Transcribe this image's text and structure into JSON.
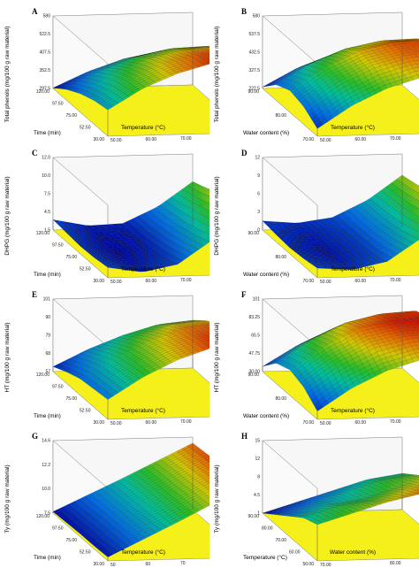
{
  "figure": {
    "background": "#ffffff"
  },
  "chart_data": [
    {
      "panel": "A",
      "type": "surface",
      "xlabel": "Time (min)",
      "ylabel": "Temperature (°C)",
      "zlabel": "Total phenols (mg/100 g raw material)",
      "x_ticks": [
        "120.00",
        "97.50",
        "75.00",
        "52.50",
        "30.00"
      ],
      "y_ticks": [
        "50.00",
        "60.00",
        "70.00",
        "80.00",
        "90.00"
      ],
      "z_ticks": [
        "297.5",
        "352.5",
        "407.5",
        "522.5",
        "580"
      ],
      "zlim": [
        297.5,
        580
      ],
      "grid_x": [
        30,
        52.5,
        75,
        97.5,
        120
      ],
      "grid_y": [
        50,
        60,
        70,
        80,
        90
      ],
      "z": [
        [
          300,
          360,
          405,
          430,
          435
        ],
        [
          340,
          410,
          460,
          490,
          495
        ],
        [
          370,
          445,
          500,
          530,
          540
        ],
        [
          390,
          470,
          525,
          560,
          570
        ],
        [
          400,
          480,
          535,
          572,
          580
        ]
      ]
    },
    {
      "panel": "B",
      "type": "surface",
      "xlabel": "Water content (%)",
      "ylabel": "Temperature (°C)",
      "zlabel": "Total phenols (mg/100 g raw material)",
      "x_ticks": [
        "90.00",
        "80.00",
        "70.00"
      ],
      "y_ticks": [
        "50.00",
        "60.00",
        "70.00",
        "80.00",
        "90.00"
      ],
      "z_ticks": [
        "222.5",
        "327.5",
        "432.5",
        "537.5",
        "580"
      ],
      "zlim": [
        222.5,
        580
      ],
      "grid_x": [
        70,
        75,
        80,
        85,
        90
      ],
      "grid_y": [
        50,
        60,
        70,
        80,
        90
      ],
      "z": [
        [
          230,
          320,
          380,
          410,
          415
        ],
        [
          300,
          400,
          470,
          505,
          510
        ],
        [
          330,
          440,
          515,
          555,
          560
        ],
        [
          310,
          420,
          500,
          545,
          555
        ],
        [
          260,
          370,
          450,
          500,
          510
        ]
      ]
    },
    {
      "panel": "C",
      "type": "surface",
      "xlabel": "Time (min)",
      "ylabel": "Temperature (°C)",
      "zlabel": "DHPG (mg/100 g raw material)",
      "x_ticks": [
        "120.00",
        "97.50",
        "75.00",
        "52.50",
        "30.00"
      ],
      "y_ticks": [
        "50.00",
        "60.00",
        "70.00",
        "80.00",
        "90.00"
      ],
      "z_ticks": [
        "1.5",
        "4.5",
        "7.5",
        "10.0",
        "12.0"
      ],
      "zlim": [
        1.5,
        12
      ],
      "grid_x": [
        30,
        52.5,
        75,
        97.5,
        120
      ],
      "grid_y": [
        50,
        60,
        70,
        80,
        90
      ],
      "z": [
        [
          3.0,
          2.0,
          2.2,
          4.5,
          8.0
        ],
        [
          2.8,
          1.8,
          2.0,
          4.8,
          8.8
        ],
        [
          2.6,
          1.6,
          2.2,
          5.2,
          9.8
        ],
        [
          2.7,
          1.8,
          2.6,
          5.8,
          10.8
        ],
        [
          3.0,
          2.2,
          3.2,
          6.6,
          12.0
        ]
      ]
    },
    {
      "panel": "D",
      "type": "surface",
      "xlabel": "Water content (%)",
      "ylabel": "Temperature (°C)",
      "zlabel": "DHPG (mg/100 g raw material)",
      "x_ticks": [
        "90.00",
        "80.00",
        "70.00"
      ],
      "y_ticks": [
        "50.00",
        "60.00",
        "70.00",
        "80.00",
        "90.00"
      ],
      "z_ticks": [
        "0",
        "3",
        "6",
        "9",
        "12"
      ],
      "zlim": [
        0,
        12
      ],
      "grid_x": [
        70,
        75,
        80,
        85,
        90
      ],
      "grid_y": [
        50,
        60,
        70,
        80,
        90
      ],
      "z": [
        [
          1.5,
          1.0,
          1.8,
          4.5,
          8.5
        ],
        [
          1.2,
          0.6,
          1.6,
          4.6,
          9.0
        ],
        [
          1.0,
          0.4,
          1.6,
          4.8,
          9.8
        ],
        [
          1.2,
          0.6,
          1.8,
          5.4,
          10.8
        ],
        [
          1.6,
          1.2,
          2.4,
          6.2,
          12.0
        ]
      ]
    },
    {
      "panel": "E",
      "type": "surface",
      "xlabel": "Time (min)",
      "ylabel": "Temperature (°C)",
      "zlabel": "HT (mg/100 g raw material)",
      "x_ticks": [
        "120.00",
        "97.50",
        "75.00",
        "52.50",
        "30.00"
      ],
      "y_ticks": [
        "50.00",
        "60.00",
        "70.00",
        "80.00",
        "90.00"
      ],
      "z_ticks": [
        "57",
        "68",
        "79",
        "90",
        "101"
      ],
      "zlim": [
        57,
        101
      ],
      "grid_x": [
        30,
        52.5,
        75,
        97.5,
        120
      ],
      "grid_y": [
        50,
        60,
        70,
        80,
        90
      ],
      "z": [
        [
          60,
          70,
          78,
          84,
          86
        ],
        [
          64,
          75,
          84,
          91,
          93
        ],
        [
          67,
          79,
          89,
          96,
          98
        ],
        [
          68,
          81,
          91,
          98,
          100
        ],
        [
          69,
          82,
          92,
          99,
          101
        ]
      ]
    },
    {
      "panel": "F",
      "type": "surface",
      "xlabel": "Water content (%)",
      "ylabel": "Temperature (°C)",
      "zlabel": "HT (mg/100 g raw material)",
      "x_ticks": [
        "90.00",
        "80.00",
        "70.00"
      ],
      "y_ticks": [
        "50.00",
        "60.00",
        "70.00",
        "80.00",
        "90.00"
      ],
      "z_ticks": [
        "30.00",
        "47.75",
        "65.5",
        "83.25",
        "101"
      ],
      "zlim": [
        30,
        101
      ],
      "grid_x": [
        70,
        75,
        80,
        85,
        90
      ],
      "grid_y": [
        50,
        60,
        70,
        80,
        90
      ],
      "z": [
        [
          35,
          55,
          70,
          78,
          80
        ],
        [
          50,
          72,
          88,
          96,
          98
        ],
        [
          55,
          78,
          94,
          100,
          101
        ],
        [
          50,
          72,
          88,
          96,
          98
        ],
        [
          38,
          60,
          76,
          86,
          88
        ]
      ]
    },
    {
      "panel": "G",
      "type": "surface",
      "xlabel": "Time (min)",
      "ylabel": "Temperature (°C)",
      "zlabel": "Ty (mg/100 g raw material)",
      "x_ticks": [
        "120.00",
        "97.50",
        "75.00",
        "52.50",
        "30.00"
      ],
      "y_ticks": [
        "50",
        "60",
        "70",
        "80",
        "90"
      ],
      "z_ticks": [
        "7.5",
        "10.0",
        "12.2",
        "14.6"
      ],
      "zlim": [
        5,
        14.6
      ],
      "grid_x": [
        30,
        52.5,
        75,
        97.5,
        120
      ],
      "grid_y": [
        50,
        60,
        70,
        80,
        90
      ],
      "z": [
        [
          5.2,
          7.3,
          9.4,
          11.6,
          13.8
        ],
        [
          5.3,
          7.4,
          9.6,
          11.8,
          14.0
        ],
        [
          5.4,
          7.5,
          9.7,
          11.9,
          14.2
        ],
        [
          5.4,
          7.6,
          9.8,
          12.1,
          14.4
        ],
        [
          5.5,
          7.7,
          9.9,
          12.2,
          14.6
        ]
      ]
    },
    {
      "panel": "H",
      "type": "surface",
      "xlabel": "Temperature (°C)",
      "ylabel": "Water content (%)",
      "zlabel": "Ty (mg/100 g raw material)",
      "x_ticks": [
        "90.00",
        "80.00",
        "70.00",
        "60.00",
        "50.00"
      ],
      "y_ticks": [
        "70.00",
        "80.00",
        "90.00"
      ],
      "z_ticks": [
        "1",
        "4.5",
        "8",
        "12",
        "15"
      ],
      "zlim": [
        1,
        15
      ],
      "grid_x": [
        50,
        60,
        70,
        80,
        90
      ],
      "grid_y": [
        70,
        75,
        80,
        85,
        90
      ],
      "z": [
        [
          1.0,
          3.0,
          5.0,
          7.0,
          8.0
        ],
        [
          3.0,
          5.0,
          7.0,
          9.0,
          10.0
        ],
        [
          5.0,
          7.0,
          8.0,
          10.0,
          12.0
        ],
        [
          7.0,
          9.0,
          10.0,
          12.0,
          13.5
        ],
        [
          8.0,
          10.0,
          12.0,
          13.5,
          15.0
        ]
      ]
    }
  ]
}
